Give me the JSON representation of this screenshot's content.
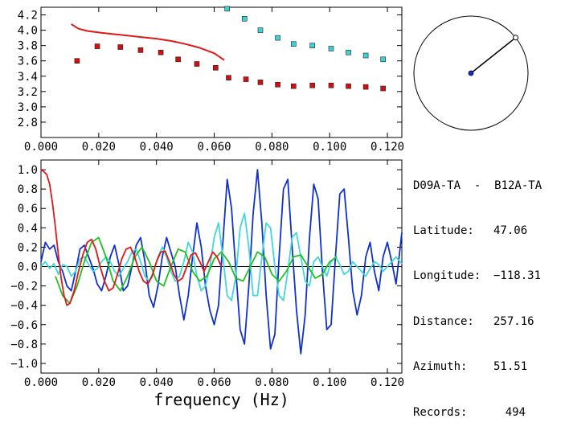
{
  "chart_data": [
    {
      "type": "scatter",
      "title": "",
      "xlabel": "",
      "ylabel": "",
      "xlim": [
        0.0,
        0.125
      ],
      "ylim": [
        2.6,
        4.3
      ],
      "xticks": [
        0.0,
        0.02,
        0.04,
        0.06,
        0.08,
        0.1,
        0.12
      ],
      "xtick_labels": [
        "0.000",
        "0.020",
        "0.040",
        "0.060",
        "0.080",
        "0.100",
        "0.120"
      ],
      "yticks": [
        2.8,
        3.0,
        3.2,
        3.4,
        3.6,
        3.8,
        4.0,
        4.2
      ],
      "ytick_labels": [
        "2.8",
        "3.0",
        "3.2",
        "3.4",
        "3.6",
        "3.8",
        "4.0",
        "4.2"
      ],
      "series": [
        {
          "kind": "markers",
          "color": "#d01010",
          "x": [
            0.0125,
            0.0195,
            0.0275,
            0.0345,
            0.0415,
            0.0475,
            0.054,
            0.0605,
            0.065,
            0.071,
            0.076,
            0.082,
            0.0875,
            0.094,
            0.1005,
            0.1065,
            0.1125,
            0.1185
          ],
          "y": [
            3.6,
            3.79,
            3.78,
            3.74,
            3.71,
            3.62,
            3.56,
            3.51,
            3.38,
            3.36,
            3.32,
            3.29,
            3.27,
            3.28,
            3.28,
            3.27,
            3.26,
            3.24
          ]
        },
        {
          "kind": "markers",
          "color": "#40d0d0",
          "x": [
            0.0645,
            0.0705,
            0.076,
            0.082,
            0.0875,
            0.094,
            0.1005,
            0.1065,
            0.1125,
            0.1185
          ],
          "y": [
            4.28,
            4.15,
            4.0,
            3.9,
            3.82,
            3.8,
            3.76,
            3.71,
            3.67,
            3.62
          ]
        },
        {
          "kind": "line",
          "color": "#e01818",
          "x": [
            0.0105,
            0.013,
            0.016,
            0.02,
            0.025,
            0.03,
            0.035,
            0.04,
            0.045,
            0.05,
            0.055,
            0.06,
            0.0635
          ],
          "y": [
            4.08,
            4.02,
            3.99,
            3.97,
            3.95,
            3.93,
            3.91,
            3.89,
            3.86,
            3.82,
            3.77,
            3.7,
            3.61
          ]
        }
      ]
    },
    {
      "type": "line",
      "title": "",
      "xlabel": "frequency (Hz)",
      "ylabel": "",
      "xlim": [
        0.0,
        0.125
      ],
      "ylim": [
        -1.1,
        1.1
      ],
      "xticks": [
        0.0,
        0.02,
        0.04,
        0.06,
        0.08,
        0.1,
        0.12
      ],
      "xtick_labels": [
        "0.000",
        "0.020",
        "0.040",
        "0.060",
        "0.080",
        "0.100",
        "0.120"
      ],
      "yticks": [
        -1.0,
        -0.8,
        -0.6,
        -0.4,
        -0.2,
        0.0,
        0.2,
        0.4,
        0.6,
        0.8,
        1.0
      ],
      "ytick_labels": [
        "−1.0",
        "−0.8",
        "−0.6",
        "−0.4",
        "−0.2",
        "0.0",
        "0.2",
        "0.4",
        "0.6",
        "0.8",
        "1.0"
      ],
      "zero_line": 0.0,
      "series": [
        {
          "color": "#1030d0",
          "x": [
            0.0,
            0.0015,
            0.003,
            0.0045,
            0.006,
            0.0075,
            0.009,
            0.0105,
            0.012,
            0.0135,
            0.015,
            0.0165,
            0.018,
            0.0195,
            0.021,
            0.0225,
            0.024,
            0.0255,
            0.027,
            0.0285,
            0.03,
            0.0315,
            0.033,
            0.0345,
            0.036,
            0.0375,
            0.039,
            0.0405,
            0.042,
            0.0435,
            0.045,
            0.0465,
            0.048,
            0.0495,
            0.051,
            0.0525,
            0.054,
            0.0555,
            0.057,
            0.0585,
            0.06,
            0.0615,
            0.063,
            0.0645,
            0.066,
            0.0675,
            0.069,
            0.0705,
            0.072,
            0.0735,
            0.075,
            0.0765,
            0.078,
            0.0795,
            0.081,
            0.0825,
            0.084,
            0.0855,
            0.087,
            0.0885,
            0.09,
            0.0915,
            0.093,
            0.0945,
            0.096,
            0.0975,
            0.099,
            0.1005,
            0.102,
            0.1035,
            0.105,
            0.1065,
            0.108,
            0.1095,
            0.111,
            0.1125,
            0.114,
            0.1155,
            0.117,
            0.1185,
            0.12,
            0.1215,
            0.123,
            0.125
          ],
          "y": [
            0.05,
            0.25,
            0.18,
            0.22,
            0.05,
            -0.05,
            -0.2,
            -0.25,
            -0.05,
            0.18,
            0.22,
            0.1,
            -0.02,
            -0.18,
            -0.25,
            -0.1,
            0.1,
            0.22,
            0.02,
            -0.25,
            -0.2,
            0.0,
            0.22,
            0.3,
            0.05,
            -0.3,
            -0.42,
            -0.2,
            0.1,
            0.3,
            0.15,
            0.0,
            -0.3,
            -0.55,
            -0.3,
            0.1,
            0.45,
            0.2,
            -0.2,
            -0.45,
            -0.6,
            -0.4,
            0.25,
            0.9,
            0.6,
            -0.05,
            -0.65,
            -0.8,
            -0.2,
            0.55,
            1.0,
            0.45,
            -0.3,
            -0.85,
            -0.7,
            0.1,
            0.8,
            0.9,
            0.2,
            -0.45,
            -0.9,
            -0.5,
            0.3,
            0.85,
            0.7,
            -0.05,
            -0.65,
            -0.6,
            0.1,
            0.75,
            0.8,
            0.3,
            -0.25,
            -0.5,
            -0.3,
            0.1,
            0.25,
            -0.05,
            -0.25,
            0.1,
            0.25,
            0.05,
            -0.18,
            0.35
          ]
        },
        {
          "color": "#40d8d8",
          "x": [
            0.0,
            0.0015,
            0.003,
            0.0045,
            0.006,
            0.0075,
            0.009,
            0.0105,
            0.012,
            0.0135,
            0.015,
            0.0165,
            0.018,
            0.0195,
            0.021,
            0.0225,
            0.024,
            0.0255,
            0.027,
            0.0285,
            0.03,
            0.0315,
            0.033,
            0.0345,
            0.036,
            0.0375,
            0.039,
            0.0405,
            0.042,
            0.0435,
            0.045,
            0.0465,
            0.048,
            0.0495,
            0.051,
            0.0525,
            0.054,
            0.0555,
            0.057,
            0.0585,
            0.06,
            0.0615,
            0.063,
            0.0645,
            0.066,
            0.0675,
            0.069,
            0.0705,
            0.072,
            0.0735,
            0.075,
            0.0765,
            0.078,
            0.0795,
            0.081,
            0.0825,
            0.084,
            0.0855,
            0.087,
            0.0885,
            0.09,
            0.0915,
            0.093,
            0.0945,
            0.096,
            0.0975,
            0.099,
            0.1005,
            0.102,
            0.1035,
            0.105,
            0.1065,
            0.108,
            0.1095,
            0.111,
            0.1125,
            0.114,
            0.1155,
            0.117,
            0.1185,
            0.12,
            0.1215,
            0.123,
            0.125
          ],
          "y": [
            0.0,
            0.05,
            -0.02,
            0.03,
            -0.08,
            0.02,
            0.0,
            -0.1,
            -0.05,
            0.08,
            0.1,
            0.02,
            -0.05,
            -0.02,
            0.05,
            0.1,
            0.05,
            -0.05,
            -0.1,
            -0.02,
            0.05,
            0.15,
            0.18,
            0.05,
            -0.1,
            -0.15,
            -0.05,
            0.1,
            0.2,
            0.1,
            -0.05,
            -0.15,
            -0.1,
            0.05,
            0.25,
            0.15,
            -0.1,
            -0.25,
            -0.2,
            0.0,
            0.3,
            0.45,
            0.1,
            -0.3,
            -0.35,
            -0.1,
            0.4,
            0.55,
            0.2,
            -0.3,
            -0.3,
            0.1,
            0.45,
            0.4,
            0.0,
            -0.3,
            -0.35,
            -0.05,
            0.3,
            0.35,
            0.1,
            -0.15,
            -0.2,
            0.05,
            0.1,
            0.0,
            -0.1,
            0.05,
            0.1,
            0.02,
            -0.08,
            -0.05,
            0.05,
            0.0,
            -0.05,
            -0.1,
            -0.02,
            0.05,
            0.02,
            -0.05,
            0.0,
            0.05,
            0.1,
            0.03
          ]
        },
        {
          "color": "#20c020",
          "x": [
            0.005,
            0.0075,
            0.01,
            0.0125,
            0.015,
            0.0175,
            0.02,
            0.0225,
            0.025,
            0.0275,
            0.03,
            0.0325,
            0.035,
            0.0375,
            0.04,
            0.0425,
            0.045,
            0.0475,
            0.05,
            0.0525,
            0.055,
            0.0575,
            0.06,
            0.0625,
            0.065,
            0.0675,
            0.07,
            0.0725,
            0.075,
            0.0775,
            0.08,
            0.0825,
            0.085,
            0.0875,
            0.09,
            0.0925,
            0.095,
            0.0975,
            0.1,
            0.1025
          ],
          "y": [
            -0.1,
            -0.3,
            -0.38,
            -0.2,
            0.05,
            0.25,
            0.3,
            0.1,
            -0.15,
            -0.25,
            -0.1,
            0.1,
            0.2,
            0.05,
            -0.15,
            -0.2,
            0.0,
            0.18,
            0.15,
            -0.05,
            -0.15,
            -0.1,
            0.08,
            0.15,
            0.05,
            -0.12,
            -0.15,
            0.0,
            0.15,
            0.1,
            -0.08,
            -0.15,
            -0.05,
            0.1,
            0.12,
            0.0,
            -0.12,
            -0.08,
            0.05,
            0.1
          ]
        },
        {
          "color": "#e01818",
          "x": [
            0.0,
            0.001,
            0.002,
            0.003,
            0.004,
            0.005,
            0.006,
            0.007,
            0.008,
            0.009,
            0.01,
            0.0115,
            0.013,
            0.0145,
            0.016,
            0.0175,
            0.019,
            0.0205,
            0.022,
            0.0235,
            0.025,
            0.0265,
            0.028,
            0.0295,
            0.031,
            0.0325,
            0.034,
            0.0355,
            0.037,
            0.0385,
            0.04,
            0.0415,
            0.043,
            0.0445,
            0.046,
            0.0475,
            0.049,
            0.0505,
            0.052,
            0.0535,
            0.055,
            0.0565,
            0.058,
            0.0595,
            0.061,
            0.0625
          ],
          "y": [
            1.0,
            0.98,
            0.95,
            0.85,
            0.65,
            0.4,
            0.12,
            -0.12,
            -0.3,
            -0.4,
            -0.38,
            -0.25,
            -0.05,
            0.12,
            0.25,
            0.28,
            0.18,
            0.0,
            -0.15,
            -0.25,
            -0.22,
            -0.08,
            0.08,
            0.18,
            0.2,
            0.1,
            -0.05,
            -0.15,
            -0.18,
            -0.1,
            0.05,
            0.15,
            0.16,
            0.05,
            -0.08,
            -0.15,
            -0.12,
            0.0,
            0.12,
            0.14,
            0.05,
            -0.05,
            0.05,
            0.15,
            0.1,
            0.0
          ]
        }
      ]
    }
  ],
  "circle": {
    "azimuth_deg": 51.51
  },
  "info": {
    "title": "D09A-TA  -  B12A-TA",
    "rows": [
      {
        "key": "Latitude:",
        "value": "47.06"
      },
      {
        "key": "Longitude:",
        "value": "−118.31"
      },
      {
        "key": "Distance:",
        "value": "257.16"
      },
      {
        "key": "Azimuth:",
        "value": "51.51"
      },
      {
        "key": "Records:",
        "value": "494"
      }
    ]
  }
}
